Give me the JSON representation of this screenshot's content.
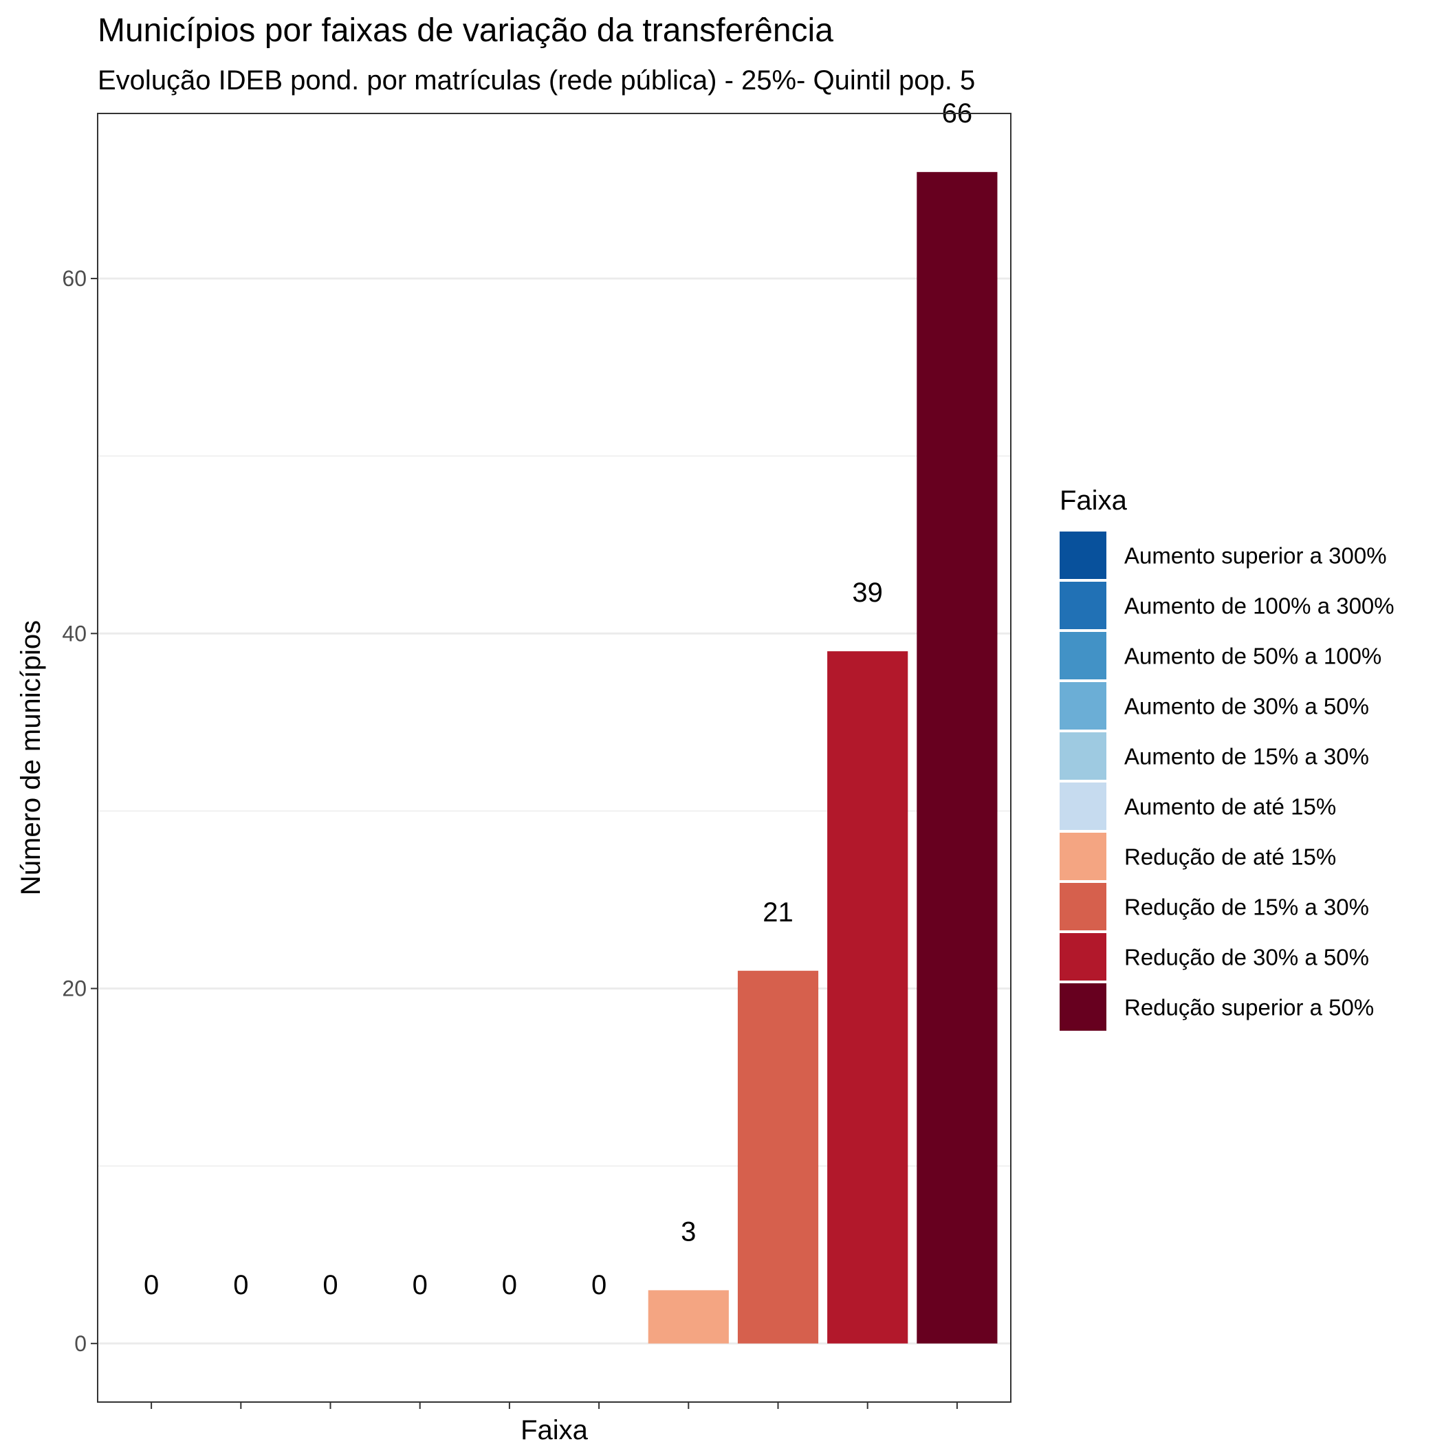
{
  "chart_data": {
    "type": "bar",
    "title": "Municípios por faixas de variação da transferência",
    "subtitle": "Evolução IDEB pond. por matrículas (rede pública) - 25%- Quintil pop. 5",
    "xlabel": "Faixa",
    "ylabel": "Número de municípios",
    "ylim": [
      -3.3,
      69.3
    ],
    "yticks": [
      0,
      20,
      40,
      60
    ],
    "grid": true,
    "legend_position": "right",
    "legend_title": "Faixa",
    "categories": [
      "Aumento superior a 300%",
      "Aumento de 100% a 300%",
      "Aumento de 50% a 100%",
      "Aumento de 30% a 50%",
      "Aumento de 15% a 30%",
      "Aumento de até 15%",
      "Redução de até 15%",
      "Redução de 15% a 30%",
      "Redução de 30% a 50%",
      "Redução superior a 50%"
    ],
    "values": [
      0,
      0,
      0,
      0,
      0,
      0,
      3,
      21,
      39,
      66
    ],
    "colors": [
      "#08519c",
      "#2171b5",
      "#4292c6",
      "#6baed6",
      "#9ecae1",
      "#c6dbef",
      "#f4a582",
      "#d6604d",
      "#b2182b",
      "#67001f"
    ]
  }
}
